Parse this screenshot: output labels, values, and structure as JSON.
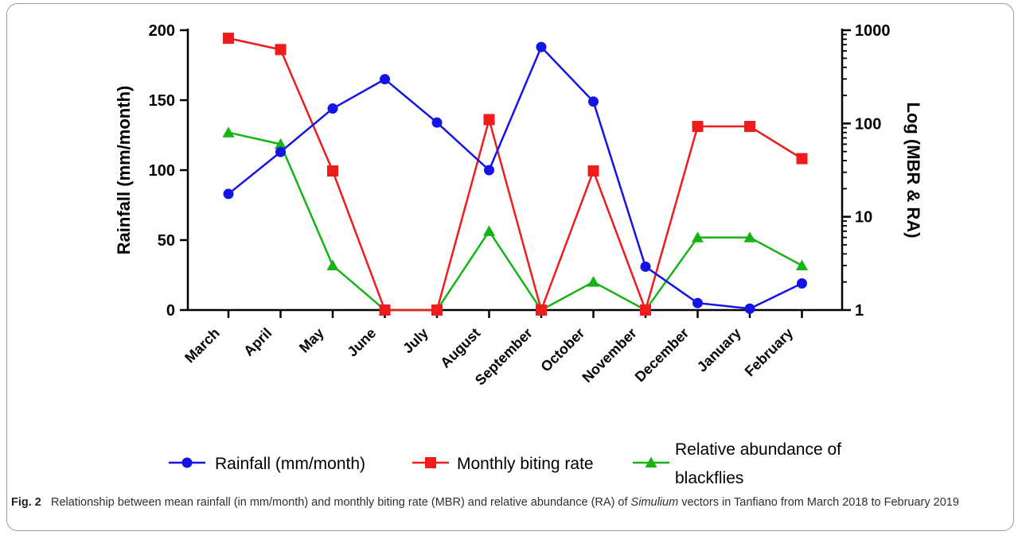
{
  "chart_data": {
    "type": "line",
    "categories": [
      "March",
      "April",
      "May",
      "June",
      "July",
      "August",
      "September",
      "October",
      "November",
      "December",
      "January",
      "February"
    ],
    "ylabel": "Rainfall (mm/month)",
    "y2label": "Log (MBR & RA)",
    "ylim": [
      0,
      200
    ],
    "yticks": [
      "0",
      "50",
      "100",
      "150",
      "200"
    ],
    "y2lim": [
      1,
      1000
    ],
    "y2scale": "log",
    "y2ticks": [
      "1",
      "10",
      "100",
      "1000"
    ],
    "legend_position": "bottom",
    "series": [
      {
        "name": "Rainfall (mm/month)",
        "axis": "left",
        "marker": "circle",
        "color": "#1414e6",
        "values": [
          83,
          113,
          144,
          165,
          134,
          100,
          188,
          149,
          31,
          5,
          1,
          19
        ]
      },
      {
        "name": "Monthly biting rate",
        "axis": "right",
        "marker": "square",
        "color": "#ee1c1c",
        "values": [
          820,
          620,
          31,
          1,
          1,
          110,
          1,
          31,
          1,
          93,
          93,
          42
        ]
      },
      {
        "name": "Relative abundance of blackflies",
        "axis": "right",
        "marker": "triangle",
        "color": "#14b414",
        "values": [
          80,
          60,
          3,
          1,
          1,
          7,
          1,
          2,
          1,
          6,
          6,
          3
        ]
      }
    ]
  },
  "caption": {
    "label": "Fig. 2",
    "text_before": "Relationship between mean rainfall (in mm/month) and monthly biting rate (MBR) and relative abundance (RA) of",
    "italic": "Simulium",
    "text_after": "vectors in Tanfiano from March 2018 to February 2019"
  }
}
